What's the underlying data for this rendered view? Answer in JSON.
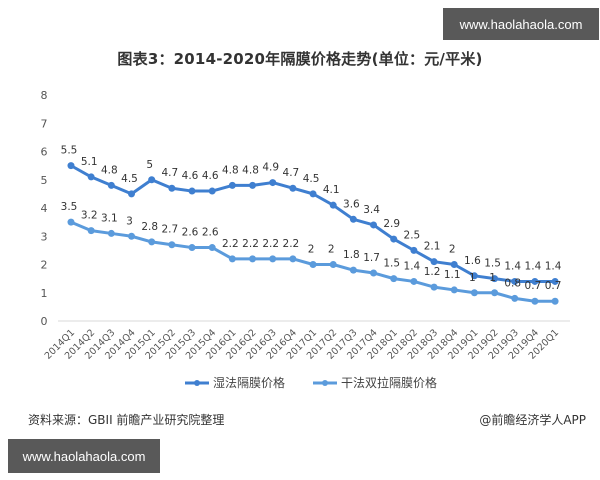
{
  "watermark_badges": {
    "top": "www.haolahaola.com",
    "bottom": "www.haolahaola.com"
  },
  "footer": {
    "source": "资料来源：GBII 前瞻产业研究院整理",
    "credit": "@前瞻经济学人APP"
  },
  "chart_data": {
    "type": "line",
    "title": "图表3：2014-2020年隔膜价格走势(单位：元/平米)",
    "xlabel": "",
    "ylabel": "",
    "ylim": [
      0,
      8
    ],
    "yticks": [
      0,
      1,
      2,
      3,
      4,
      5,
      6,
      7,
      8
    ],
    "grid": false,
    "legend_position": "bottom",
    "categories": [
      "2014Q1",
      "2014Q2",
      "2014Q3",
      "2014Q4",
      "2015Q1",
      "2015Q2",
      "2015Q3",
      "2015Q4",
      "2016Q1",
      "2016Q2",
      "2016Q3",
      "2016Q4",
      "2017Q1",
      "2017Q2",
      "2017Q3",
      "2017Q4",
      "2018Q1",
      "2018Q2",
      "2018Q3",
      "2018Q4",
      "2019Q1",
      "2019Q2",
      "2019Q3",
      "2019Q4",
      "2020Q1"
    ],
    "series": [
      {
        "name": "湿法隔膜价格",
        "color": "#3f7fd0",
        "values": [
          5.5,
          5.1,
          4.8,
          4.5,
          5,
          4.7,
          4.6,
          4.6,
          4.8,
          4.8,
          4.9,
          4.7,
          4.5,
          4.1,
          3.6,
          3.4,
          2.9,
          2.5,
          2.1,
          2,
          1.6,
          1.5,
          1.4,
          1.4,
          1.4
        ]
      },
      {
        "name": "干法双拉隔膜价格",
        "color": "#5b9bdc",
        "values": [
          3.5,
          3.2,
          3.1,
          3,
          2.8,
          2.7,
          2.6,
          2.6,
          2.2,
          2.2,
          2.2,
          2.2,
          2,
          2,
          1.8,
          1.7,
          1.5,
          1.4,
          1.2,
          1.1,
          1,
          1,
          0.8,
          0.7,
          0.7
        ]
      }
    ]
  }
}
